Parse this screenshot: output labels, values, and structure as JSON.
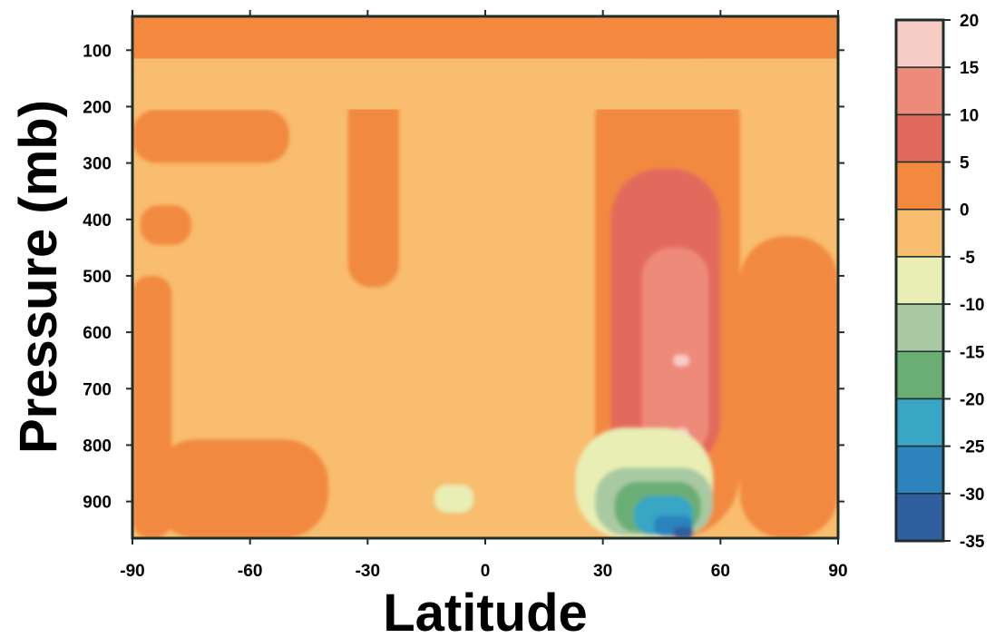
{
  "chart_data": {
    "type": "heatmap",
    "title": "",
    "xlabel": "Latitude",
    "ylabel": "Pressure (mb)",
    "xlim": [
      -90,
      90
    ],
    "ylim": [
      965,
      40
    ],
    "x_ticks": [
      -90,
      -60,
      -30,
      0,
      30,
      60,
      90
    ],
    "x_tick_labels": [
      "-90",
      "-60",
      "-30",
      "0",
      "30",
      "60",
      "90"
    ],
    "y_ticks": [
      100,
      200,
      300,
      400,
      500,
      600,
      700,
      800,
      900
    ],
    "y_tick_labels": [
      "100",
      "200",
      "300",
      "400",
      "500",
      "600",
      "700",
      "800",
      "900"
    ],
    "y_inverted": true,
    "grid": false,
    "colorbar": {
      "placement": "right",
      "levels": [
        20,
        15,
        10,
        5,
        0,
        -5,
        -10,
        -15,
        -20,
        -25,
        -30,
        -35
      ],
      "labels": [
        "20",
        "15",
        "10",
        "5",
        "0",
        "-5",
        "-10",
        "-15",
        "-20",
        "-25",
        "-30",
        "-35"
      ],
      "bins": [
        {
          "range": [
            15,
            20
          ],
          "color": "#f6cdc4"
        },
        {
          "range": [
            10,
            15
          ],
          "color": "#ee8a7a"
        },
        {
          "range": [
            5,
            10
          ],
          "color": "#e26a5c"
        },
        {
          "range": [
            0,
            5
          ],
          "color": "#f2893f"
        },
        {
          "range": [
            -5,
            0
          ],
          "color": "#f8bd6e"
        },
        {
          "range": [
            -10,
            -5
          ],
          "color": "#e9eeb5"
        },
        {
          "range": [
            -15,
            -10
          ],
          "color": "#a8c9a2"
        },
        {
          "range": [
            -20,
            -15
          ],
          "color": "#6aae74"
        },
        {
          "range": [
            -25,
            -20
          ],
          "color": "#38a6c4"
        },
        {
          "range": [
            -30,
            -25
          ],
          "color": "#2c83bd"
        },
        {
          "range": [
            -35,
            -30
          ],
          "color": "#2f5f9e"
        }
      ]
    },
    "regions": [
      {
        "value": 2.5,
        "latitude": [
          -90,
          90
        ],
        "pressure": [
          40,
          115
        ],
        "note": "top band"
      },
      {
        "value": -2.5,
        "latitude": [
          -90,
          90
        ],
        "pressure": [
          115,
          205
        ],
        "note": "upper band"
      },
      {
        "value": 2.5,
        "latitude": [
          -90,
          -50
        ],
        "pressure": [
          205,
          300
        ]
      },
      {
        "value": 2.5,
        "latitude": [
          -35,
          -22
        ],
        "pressure": [
          140,
          520
        ]
      },
      {
        "value": 2.5,
        "latitude": [
          -88,
          -75
        ],
        "pressure": [
          375,
          445
        ]
      },
      {
        "value": 2.5,
        "latitude": [
          -90,
          -80
        ],
        "pressure": [
          500,
          965
        ]
      },
      {
        "value": 2.5,
        "latitude": [
          -85,
          -40
        ],
        "pressure": [
          790,
          965
        ]
      },
      {
        "value": 2.5,
        "latitude": [
          28,
          65
        ],
        "pressure": [
          110,
          965
        ]
      },
      {
        "value": 2.5,
        "latitude": [
          65,
          90
        ],
        "pressure": [
          430,
          965
        ]
      },
      {
        "value": 7.5,
        "latitude": [
          32,
          60
        ],
        "pressure": [
          310,
          845
        ]
      },
      {
        "value": 12.5,
        "latitude": [
          40,
          57
        ],
        "pressure": [
          450,
          820
        ]
      },
      {
        "value": 17.5,
        "latitude": [
          48,
          52
        ],
        "pressure": [
          640,
          660
        ]
      },
      {
        "value": 17.5,
        "latitude": [
          48,
          52
        ],
        "pressure": [
          770,
          795
        ]
      },
      {
        "value": -7.5,
        "latitude": [
          23,
          58
        ],
        "pressure": [
          770,
          965
        ]
      },
      {
        "value": -7.5,
        "latitude": [
          -13,
          -3
        ],
        "pressure": [
          870,
          920
        ]
      },
      {
        "value": -12.5,
        "latitude": [
          28,
          58
        ],
        "pressure": [
          840,
          960
        ]
      },
      {
        "value": -17.5,
        "latitude": [
          33,
          55
        ],
        "pressure": [
          865,
          955
        ]
      },
      {
        "value": -22.5,
        "latitude": [
          38,
          53
        ],
        "pressure": [
          890,
          960
        ]
      },
      {
        "value": -27.5,
        "latitude": [
          43,
          53
        ],
        "pressure": [
          925,
          962
        ]
      },
      {
        "value": -32.5,
        "latitude": [
          48,
          53
        ],
        "pressure": [
          945,
          965
        ]
      }
    ]
  }
}
